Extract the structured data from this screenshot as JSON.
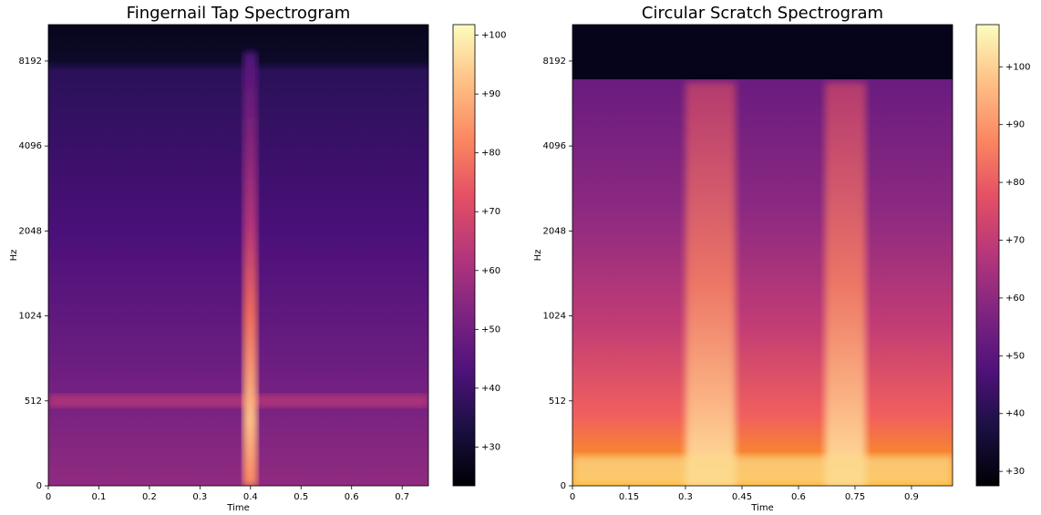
{
  "chart_data": [
    {
      "type": "spectrogram",
      "title": "Fingernail Tap Spectrogram",
      "xlabel": "Time",
      "ylabel": "Hz",
      "xlim": [
        0,
        0.752
      ],
      "xticks": [
        0,
        0.1,
        0.2,
        0.3,
        0.4,
        0.5,
        0.6,
        0.7
      ],
      "ylim": [
        0,
        11025
      ],
      "yticks": [
        0,
        512,
        1024,
        2048,
        4096,
        8192
      ],
      "yscale": "symlog",
      "linthresh": 512,
      "colorbar": {
        "cmap": "magma",
        "clim": [
          23.4,
          101.8
        ],
        "ticks": [
          {
            "value": 30,
            "label": "+30"
          },
          {
            "value": 40,
            "label": "+40"
          },
          {
            "value": 50,
            "label": "+50"
          },
          {
            "value": 60,
            "label": "+60"
          },
          {
            "value": 70,
            "label": "+70"
          },
          {
            "value": 80,
            "label": "+80"
          },
          {
            "value": 90,
            "label": "+90"
          },
          {
            "value": 100,
            "label": "+100"
          }
        ]
      }
    },
    {
      "type": "spectrogram",
      "title": "Circular Scratch Spectrogram",
      "xlabel": "Time",
      "ylabel": "Hz",
      "xlim": [
        0,
        1.009
      ],
      "xticks": [
        0,
        0.15,
        0.3,
        0.45,
        0.6,
        0.75,
        0.9
      ],
      "ylim": [
        0,
        11025
      ],
      "yticks": [
        0,
        512,
        1024,
        2048,
        4096,
        8192
      ],
      "yscale": "symlog",
      "linthresh": 512,
      "colorbar": {
        "cmap": "magma",
        "clim": [
          27.5,
          107.3
        ],
        "ticks": [
          {
            "value": 30,
            "label": "+30"
          },
          {
            "value": 40,
            "label": "+40"
          },
          {
            "value": 50,
            "label": "+50"
          },
          {
            "value": 60,
            "label": "+60"
          },
          {
            "value": 70,
            "label": "+70"
          },
          {
            "value": 80,
            "label": "+80"
          },
          {
            "value": 90,
            "label": "+90"
          },
          {
            "value": 100,
            "label": "+100"
          }
        ]
      }
    }
  ]
}
